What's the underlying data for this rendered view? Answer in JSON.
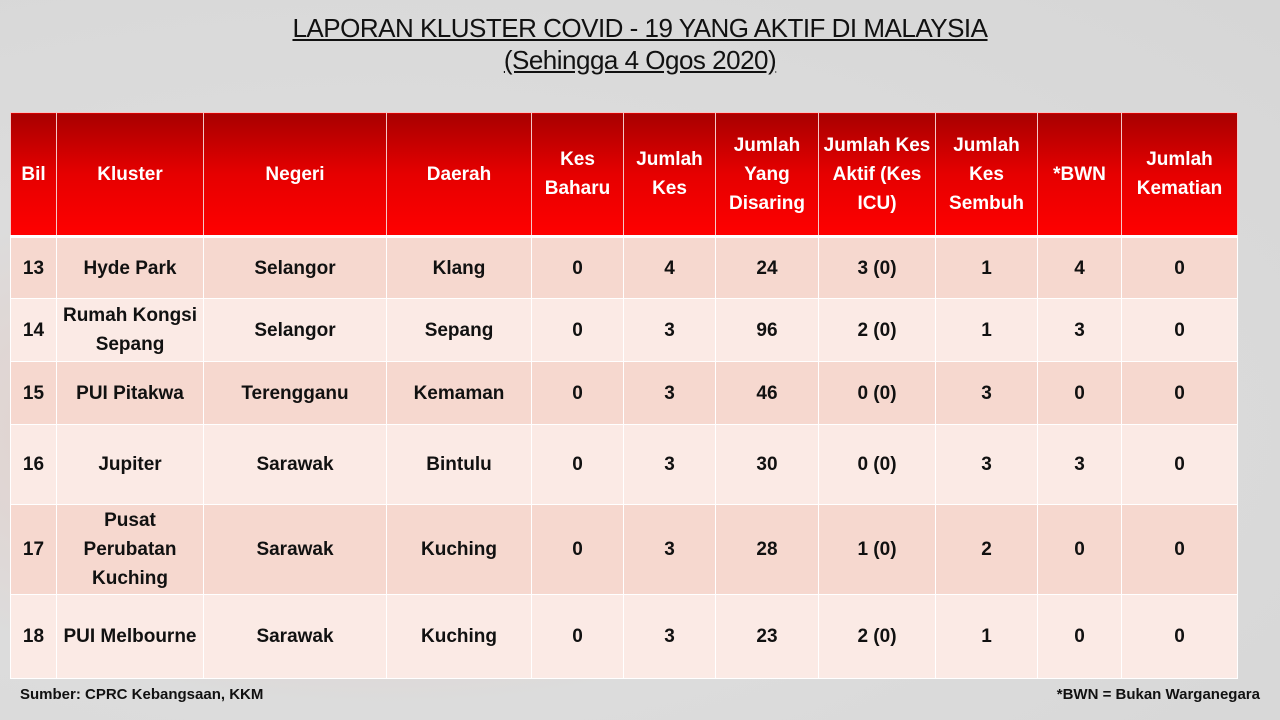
{
  "title": {
    "line1": "LAPORAN KLUSTER COVID - 19 YANG AKTIF DI MALAYSIA",
    "line2": "(Sehingga 4 Ogos 2020)"
  },
  "table": {
    "headers": [
      "Bil",
      "Kluster",
      "Negeri",
      "Daerah",
      "Kes Baharu",
      "Jumlah Kes",
      "Jumlah Yang Disaring",
      "Jumlah Kes Aktif (Kes ICU)",
      "Jumlah Kes Sembuh",
      "*BWN",
      "Jumlah Kematian"
    ],
    "rows": [
      [
        "13",
        "Hyde Park",
        "Selangor",
        "Klang",
        "0",
        "4",
        "24",
        "3 (0)",
        "1",
        "4",
        "0"
      ],
      [
        "14",
        "Rumah Kongsi Sepang",
        "Selangor",
        "Sepang",
        "0",
        "3",
        "96",
        "2 (0)",
        "1",
        "3",
        "0"
      ],
      [
        "15",
        "PUI Pitakwa",
        "Terengganu",
        "Kemaman",
        "0",
        "3",
        "46",
        "0 (0)",
        "3",
        "0",
        "0"
      ],
      [
        "16",
        "Jupiter",
        "Sarawak",
        "Bintulu",
        "0",
        "3",
        "30",
        "0 (0)",
        "3",
        "3",
        "0"
      ],
      [
        "17",
        "Pusat Perubatan Kuching",
        "Sarawak",
        "Kuching",
        "0",
        "3",
        "28",
        "1 (0)",
        "2",
        "0",
        "0"
      ],
      [
        "18",
        "PUI Melbourne",
        "Sarawak",
        "Kuching",
        "0",
        "3",
        "23",
        "2 (0)",
        "1",
        "0",
        "0"
      ]
    ]
  },
  "footer": {
    "source": "Sumber: CPRC Kebangsaan, KKM",
    "note": "*BWN = Bukan Warganegara"
  },
  "colors": {
    "header": "#e60000",
    "row_odd": "#f6d8cf",
    "row_even": "#fbeae5"
  }
}
